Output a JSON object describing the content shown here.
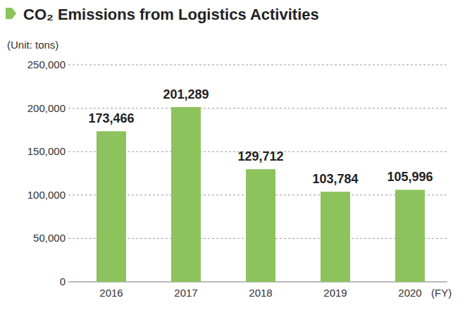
{
  "chart_data": {
    "type": "bar",
    "title": "CO₂ Emissions from Logistics Activities",
    "y_label": "(Unit: tons)",
    "x_label": "(FY)",
    "categories": [
      "2016",
      "2017",
      "2018",
      "2019",
      "2020"
    ],
    "values": [
      173466,
      201289,
      129712,
      103784,
      105996
    ],
    "value_labels": [
      "173,466",
      "201,289",
      "129,712",
      "103,784",
      "105,996"
    ],
    "color": "#8cc35c",
    "ylim": [
      0,
      250000
    ],
    "yticks": [
      0,
      {
        "value": 50000,
        "label": "50,000"
      },
      {
        "value": 100000,
        "label": "100,000"
      },
      {
        "value": 150000,
        "label": "150,000"
      },
      {
        "value": 200000,
        "label": "200,000"
      },
      {
        "value": 250000,
        "label": "250,000"
      }
    ],
    "grid": true,
    "data_labels": true
  }
}
